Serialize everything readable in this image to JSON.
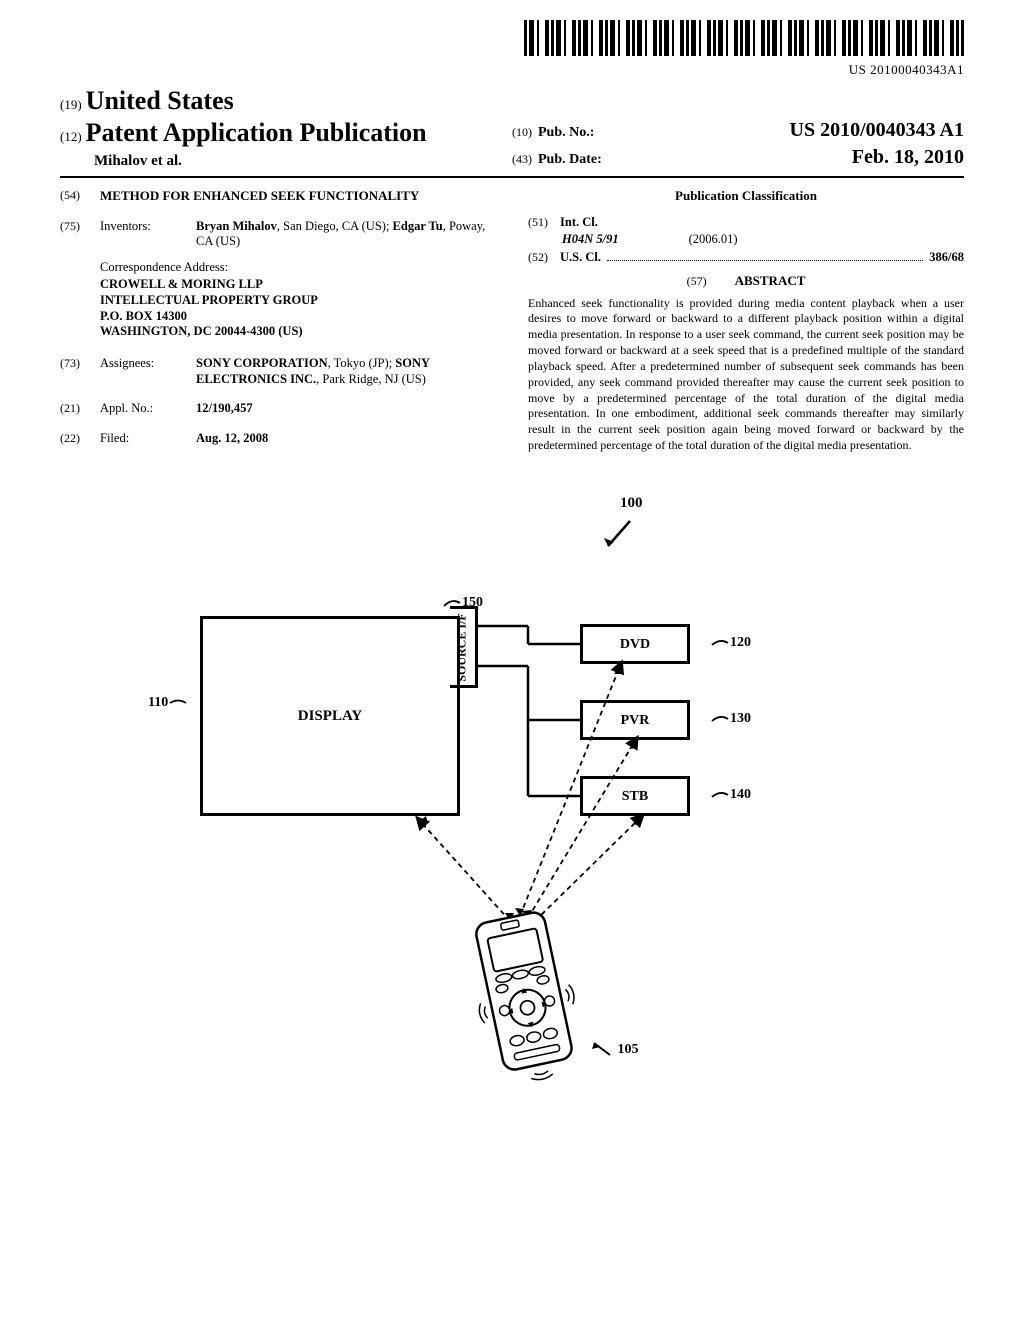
{
  "barcode_number": "US 20100040343A1",
  "header": {
    "country_pref": "(19)",
    "country": "United States",
    "pub_pref": "(12)",
    "pub_type": "Patent Application Publication",
    "authors": "Mihalov et al.",
    "pubno_pref": "(10)",
    "pubno_label": "Pub. No.:",
    "pubno_value": "US 2010/0040343 A1",
    "pubdate_pref": "(43)",
    "pubdate_label": "Pub. Date:",
    "pubdate_value": "Feb. 18, 2010"
  },
  "left": {
    "title_code": "(54)",
    "title": "METHOD FOR ENHANCED SEEK FUNCTIONALITY",
    "inventors_code": "(75)",
    "inventors_label": "Inventors:",
    "inventors_value": "Bryan Mihalov, San Diego, CA (US); Edgar Tu, Poway, CA (US)",
    "corr_label": "Correspondence Address:",
    "corr_lines": [
      "CROWELL & MORING LLP",
      "INTELLECTUAL PROPERTY GROUP",
      "P.O. BOX 14300",
      "WASHINGTON, DC 20044-4300 (US)"
    ],
    "assignees_code": "(73)",
    "assignees_label": "Assignees:",
    "assignees_value": "SONY CORPORATION, Tokyo (JP); SONY ELECTRONICS INC., Park Ridge, NJ (US)",
    "applno_code": "(21)",
    "applno_label": "Appl. No.:",
    "applno_value": "12/190,457",
    "filed_code": "(22)",
    "filed_label": "Filed:",
    "filed_value": "Aug. 12, 2008"
  },
  "right": {
    "classification_hdr": "Publication Classification",
    "intcl_code": "(51)",
    "intcl_label": "Int. Cl.",
    "intcl_main": "H04N 5/91",
    "intcl_year": "(2006.01)",
    "uscl_code": "(52)",
    "uscl_label": "U.S. Cl.",
    "uscl_value": "386/68",
    "abstract_code": "(57)",
    "abstract_hdr": "ABSTRACT",
    "abstract_body": "Enhanced seek functionality is provided during media content playback when a user desires to move forward or backward to a different playback position within a digital media presentation. In response to a user seek command, the current seek position may be moved forward or backward at a seek speed that is a predefined multiple of the standard playback speed. After a predetermined number of subsequent seek commands has been provided, any seek command provided thereafter may cause the current seek position to move by a predetermined percentage of the total duration of the digital media presentation. In one embodiment, additional seek commands thereafter may similarly result in the current seek position again being moved forward or backward by the predetermined percentage of the total duration of the digital media presentation."
  },
  "figure": {
    "ref_100": "100",
    "ref_110": "110",
    "ref_150": "150",
    "ref_120": "120",
    "ref_130": "130",
    "ref_140": "140",
    "ref_105": "105",
    "display": "DISPLAY",
    "source_if": "SOURCE I/F",
    "dvd": "DVD",
    "pvr": "PVR",
    "stb": "STB"
  }
}
